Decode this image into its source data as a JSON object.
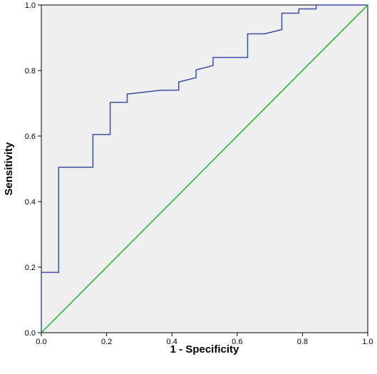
{
  "chart_data": {
    "type": "line",
    "xlabel": "1 - Specificity",
    "ylabel": "Sensitivity",
    "xlim": [
      0,
      1
    ],
    "ylim": [
      0,
      1
    ],
    "xticks": [
      "0.0",
      "0.2",
      "0.4",
      "0.6",
      "0.8",
      "1.0"
    ],
    "yticks": [
      "0.0",
      "0.2",
      "0.4",
      "0.6",
      "0.8",
      "1.0"
    ],
    "grid": false,
    "series": [
      {
        "color": "#3b4fa6",
        "points": [
          [
            0.0,
            0.0
          ],
          [
            0.0,
            0.184
          ],
          [
            0.053,
            0.184
          ],
          [
            0.053,
            0.505
          ],
          [
            0.158,
            0.505
          ],
          [
            0.158,
            0.605
          ],
          [
            0.211,
            0.605
          ],
          [
            0.211,
            0.703
          ],
          [
            0.263,
            0.703
          ],
          [
            0.263,
            0.728
          ],
          [
            0.368,
            0.74
          ],
          [
            0.421,
            0.74
          ],
          [
            0.421,
            0.765
          ],
          [
            0.474,
            0.778
          ],
          [
            0.474,
            0.802
          ],
          [
            0.526,
            0.815
          ],
          [
            0.526,
            0.84
          ],
          [
            0.632,
            0.84
          ],
          [
            0.632,
            0.912
          ],
          [
            0.684,
            0.912
          ],
          [
            0.737,
            0.925
          ],
          [
            0.737,
            0.975
          ],
          [
            0.789,
            0.975
          ],
          [
            0.789,
            0.988
          ],
          [
            0.842,
            0.988
          ],
          [
            0.842,
            1.0
          ],
          [
            1.0,
            1.0
          ]
        ]
      },
      {
        "color": "#1fb12b",
        "points": [
          [
            0.0,
            0.0
          ],
          [
            1.0,
            1.0
          ]
        ]
      }
    ]
  },
  "colors": {
    "plot_background": "#efefef",
    "axis": "#000000"
  }
}
